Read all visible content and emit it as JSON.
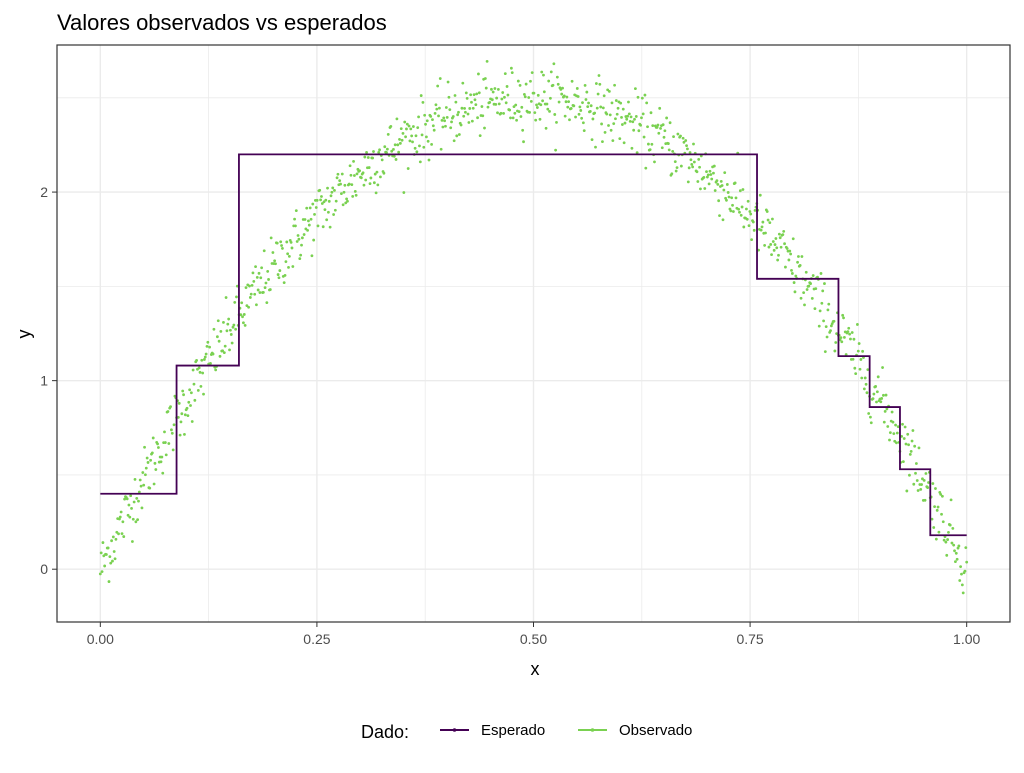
{
  "chart_data": {
    "type": "scatter",
    "title": "Valores observados vs esperados",
    "xlabel": "x",
    "ylabel": "y",
    "xlim": [
      -0.05,
      1.05
    ],
    "ylim": [
      -0.28,
      2.78
    ],
    "x_ticks": [
      0,
      0.25,
      0.5,
      0.75,
      1
    ],
    "x_tick_labels": [
      "0.00",
      "0.25",
      "0.50",
      "0.75",
      "1.00"
    ],
    "y_ticks": [
      0,
      1,
      2
    ],
    "y_tick_labels": [
      "0",
      "1",
      "2"
    ],
    "grid": true,
    "legend": {
      "title": "Dado:",
      "position": "bottom",
      "entries": [
        "Esperado",
        "Observado"
      ]
    },
    "colors": {
      "Esperado": "#440154",
      "Observado": "#7ad151",
      "grid": "#ebebeb",
      "panel_border": "#333333",
      "text": "#000000",
      "tick_text": "#4d4d4d"
    },
    "series": [
      {
        "name": "Esperado",
        "kind": "step",
        "points": [
          {
            "x": 0.0,
            "y": 0.4
          },
          {
            "x": 0.088,
            "y": 0.4
          },
          {
            "x": 0.088,
            "y": 1.08
          },
          {
            "x": 0.16,
            "y": 1.08
          },
          {
            "x": 0.16,
            "y": 2.2
          },
          {
            "x": 0.758,
            "y": 2.2
          },
          {
            "x": 0.758,
            "y": 1.54
          },
          {
            "x": 0.852,
            "y": 1.54
          },
          {
            "x": 0.852,
            "y": 1.13
          },
          {
            "x": 0.888,
            "y": 1.13
          },
          {
            "x": 0.888,
            "y": 0.86
          },
          {
            "x": 0.923,
            "y": 0.86
          },
          {
            "x": 0.923,
            "y": 0.53
          },
          {
            "x": 0.958,
            "y": 0.53
          },
          {
            "x": 0.958,
            "y": 0.18
          },
          {
            "x": 1.0,
            "y": 0.18
          }
        ]
      },
      {
        "name": "Observado",
        "kind": "points",
        "n": 1000,
        "x_range": [
          0,
          1
        ],
        "curve": "y = 10*x*(1-x)",
        "noise_sd": 0.08
      }
    ]
  }
}
